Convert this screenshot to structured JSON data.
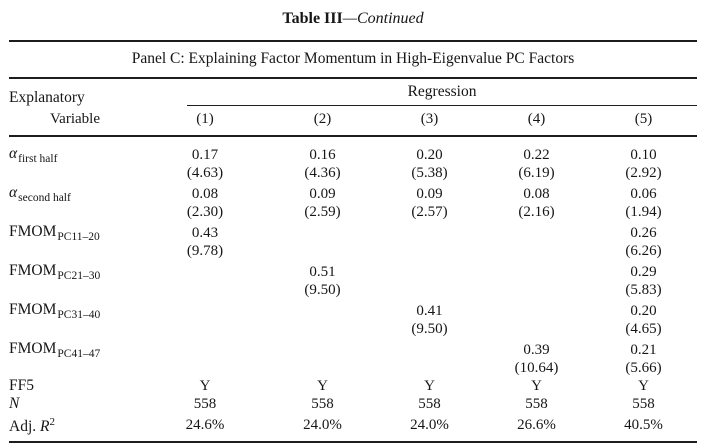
{
  "title": {
    "main": "Table III",
    "continued": "—Continued"
  },
  "panel_title": "Panel C: Explaining Factor Momentum in High-Eigenvalue PC Factors",
  "header": {
    "group_label": "Regression",
    "row_label_line1": "Explanatory",
    "row_label_line2": "Variable",
    "columns": [
      "(1)",
      "(2)",
      "(3)",
      "(4)",
      "(5)"
    ]
  },
  "body_rows": [
    {
      "label_main": "α",
      "label_sub": "first half",
      "coef": [
        "0.17",
        "0.16",
        "0.20",
        "0.22",
        "0.10"
      ],
      "tstat": [
        "(4.63)",
        "(4.36)",
        "(5.38)",
        "(6.19)",
        "(2.92)"
      ]
    },
    {
      "label_main": "α",
      "label_sub": "second half",
      "coef": [
        "0.08",
        "0.09",
        "0.09",
        "0.08",
        "0.06"
      ],
      "tstat": [
        "(2.30)",
        "(2.59)",
        "(2.57)",
        "(2.16)",
        "(1.94)"
      ]
    },
    {
      "label_main": "FMOM",
      "label_sub": "PC11–20",
      "coef": [
        "0.43",
        "",
        "",
        "",
        "0.26"
      ],
      "tstat": [
        "(9.78)",
        "",
        "",
        "",
        "(6.26)"
      ]
    },
    {
      "label_main": "FMOM",
      "label_sub": "PC21–30",
      "coef": [
        "",
        "0.51",
        "",
        "",
        "0.29"
      ],
      "tstat": [
        "",
        "(9.50)",
        "",
        "",
        "(5.83)"
      ]
    },
    {
      "label_main": "FMOM",
      "label_sub": "PC31–40",
      "coef": [
        "",
        "",
        "0.41",
        "",
        "0.20"
      ],
      "tstat": [
        "",
        "",
        "(9.50)",
        "",
        "(4.65)"
      ]
    },
    {
      "label_main": "FMOM",
      "label_sub": "PC41–47",
      "coef": [
        "",
        "",
        "",
        "0.39",
        "0.21"
      ],
      "tstat": [
        "",
        "",
        "",
        "(10.64)",
        "(5.66)"
      ]
    }
  ],
  "footer": {
    "ff5": {
      "label": "FF5",
      "values": [
        "Y",
        "Y",
        "Y",
        "Y",
        "Y"
      ]
    },
    "n": {
      "label": "N",
      "values": [
        "558",
        "558",
        "558",
        "558",
        "558"
      ]
    },
    "adj_r2": {
      "label_prefix": "Adj. ",
      "label_var": "R",
      "label_sup": "2",
      "values": [
        "24.6%",
        "24.0%",
        "24.0%",
        "26.6%",
        "40.5%"
      ]
    }
  },
  "colors": {
    "text": "#161616",
    "rule": "#1d1d1d",
    "background": "#ffffff"
  }
}
